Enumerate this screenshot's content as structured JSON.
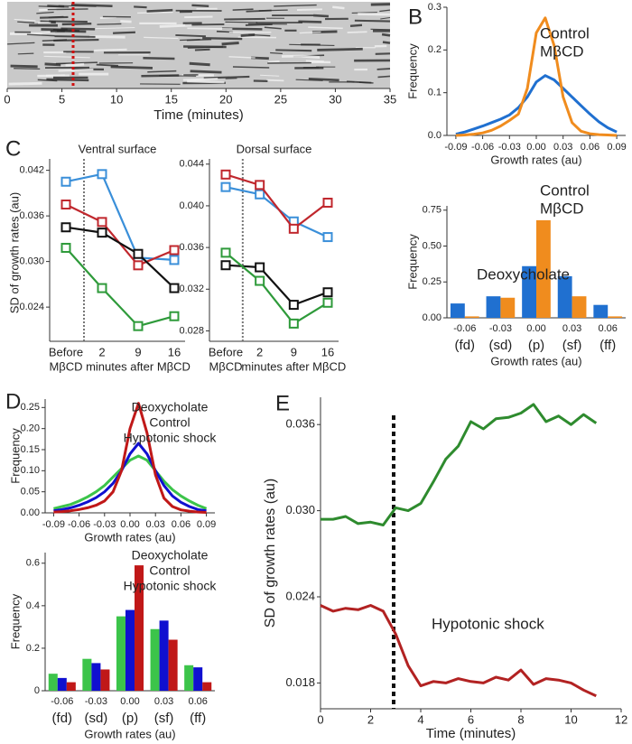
{
  "chart_data": [
    {
      "type": "kymograph",
      "panel": "A",
      "xlim": [
        0,
        35
      ],
      "xticks": [
        0,
        5,
        10,
        15,
        20,
        25,
        30,
        35
      ],
      "xlabel": "Time (minutes)"
    },
    {
      "type": "line",
      "panel": "B",
      "xlabel": "Growth rates (au)",
      "ylabel": "Frequency",
      "x": [
        -0.09,
        -0.08,
        -0.07,
        -0.06,
        -0.05,
        -0.04,
        -0.03,
        -0.02,
        -0.01,
        0,
        0.01,
        0.02,
        0.03,
        0.04,
        0.05,
        0.06,
        0.07,
        0.08,
        0.09
      ],
      "xlim": [
        -0.1,
        0.1
      ],
      "xticks": [
        -0.09,
        -0.06,
        -0.03,
        {
          "value": 0,
          "label": "0.00"
        },
        0.03,
        0.06,
        0.09
      ],
      "ylim": [
        0,
        0.3
      ],
      "yticks": [
        {
          "value": 0,
          "label": "0.0"
        },
        0.1,
        0.2,
        0.3
      ],
      "legend": "upper right",
      "series": [
        {
          "name": "Control",
          "color": "#2070d0",
          "values": [
            0.003,
            0.008,
            0.015,
            0.022,
            0.03,
            0.038,
            0.048,
            0.065,
            0.09,
            0.125,
            0.14,
            0.13,
            0.11,
            0.09,
            0.07,
            0.05,
            0.032,
            0.018,
            0.008
          ]
        },
        {
          "name": "MβCD",
          "color": "#f08c1e",
          "values": [
            0,
            0.001,
            0.003,
            0.006,
            0.012,
            0.022,
            0.035,
            0.05,
            0.11,
            0.24,
            0.275,
            0.21,
            0.09,
            0.03,
            0.01,
            0.004,
            0.002,
            0.001,
            0
          ]
        }
      ]
    },
    {
      "type": "bar",
      "xlabel": "Growth rates (au)",
      "ylabel": "Frequency",
      "categories": [
        "-0.06",
        "-0.03",
        "0.00",
        "0.03",
        "0.06"
      ],
      "category_codes": [
        "(fd)",
        "(sd)",
        "(p)",
        "(sf)",
        "(ff)"
      ],
      "ylim": [
        0,
        0.78
      ],
      "yticks": [
        {
          "value": 0,
          "label": "0.00"
        },
        0.25,
        {
          "value": 0.5,
          "label": "0.50"
        },
        0.75
      ],
      "legend": "upper right",
      "series": [
        {
          "name": "Control",
          "color": "#2070d0",
          "values": [
            0.1,
            0.15,
            0.36,
            0.29,
            0.09
          ]
        },
        {
          "name": "MβCD",
          "color": "#f08c1e",
          "values": [
            0.01,
            0.14,
            0.68,
            0.15,
            0.01
          ]
        }
      ]
    },
    {
      "type": "line",
      "panel": "C",
      "title": "Ventral surface",
      "ylabel": "SD of growth rates (au)",
      "markers": "square",
      "categories": [
        "Before",
        "2",
        "9",
        "16"
      ],
      "x_captions": [
        {
          "text": "MβCD",
          "color": "#2e5fa8"
        },
        {
          "text": "minutes after MβCD",
          "color": "#c0272d"
        }
      ],
      "ylim": [
        0.0195,
        0.0435
      ],
      "yticks": [
        0.024,
        {
          "value": 0.03,
          "label": "0.030"
        },
        0.036,
        0.042
      ],
      "series": [
        {
          "color": "#3a8fd9",
          "values": [
            0.0405,
            0.0415,
            0.0305,
            0.0302
          ]
        },
        {
          "color": "#c0272d",
          "values": [
            0.0375,
            0.0352,
            0.0295,
            0.0315
          ]
        },
        {
          "color": "#111111",
          "values": [
            0.0345,
            0.0338,
            0.031,
            0.0265
          ]
        },
        {
          "color": "#2e9a3a",
          "values": [
            0.0318,
            0.0265,
            0.0215,
            0.0228
          ]
        }
      ]
    },
    {
      "type": "line",
      "title": "Dorsal surface",
      "markers": "square",
      "categories": [
        "Before",
        "2",
        "9",
        "16"
      ],
      "x_captions": [
        {
          "text": "MβCD",
          "color": "#2e5fa8"
        },
        {
          "text": "minutes after MβCD",
          "color": "#c0272d"
        }
      ],
      "ylim": [
        0.027,
        0.0445
      ],
      "yticks": [
        0.028,
        0.032,
        0.036,
        {
          "value": 0.04,
          "label": "0.040"
        },
        0.044
      ],
      "series": [
        {
          "color": "#3a8fd9",
          "values": [
            0.0418,
            0.0411,
            0.0385,
            0.037
          ]
        },
        {
          "color": "#c0272d",
          "values": [
            0.043,
            0.042,
            0.0378,
            0.0403
          ]
        },
        {
          "color": "#111111",
          "values": [
            0.0343,
            0.0341,
            0.0305,
            0.0317
          ]
        },
        {
          "color": "#2e9a3a",
          "values": [
            0.0355,
            0.0328,
            0.0287,
            0.0307
          ]
        }
      ]
    },
    {
      "type": "line",
      "panel": "D",
      "xlabel": "Growth rates (au)",
      "ylabel": "Frequency",
      "x": [
        -0.09,
        -0.08,
        -0.07,
        -0.06,
        -0.05,
        -0.04,
        -0.03,
        -0.02,
        -0.01,
        0,
        0.01,
        0.02,
        0.03,
        0.04,
        0.05,
        0.06,
        0.07,
        0.08,
        0.09
      ],
      "xlim": [
        -0.1,
        0.1
      ],
      "xticks": [
        -0.09,
        -0.06,
        -0.03,
        {
          "value": 0,
          "label": "0.00"
        },
        0.03,
        0.06,
        0.09
      ],
      "ylim": [
        0,
        0.27
      ],
      "yticks": [
        {
          "value": 0,
          "label": "0.00"
        },
        0.05,
        {
          "value": 0.1,
          "label": "0.10"
        },
        0.15,
        {
          "value": 0.2,
          "label": "0.20"
        },
        0.25
      ],
      "legend": "upper right",
      "series": [
        {
          "name": "Deoxycholate",
          "color": "#3cc44a",
          "values": [
            0.01,
            0.015,
            0.02,
            0.028,
            0.038,
            0.05,
            0.065,
            0.085,
            0.105,
            0.125,
            0.135,
            0.125,
            0.1,
            0.075,
            0.055,
            0.04,
            0.028,
            0.018,
            0.01
          ]
        },
        {
          "name": "Control",
          "color": "#1010d0",
          "values": [
            0.005,
            0.008,
            0.012,
            0.018,
            0.026,
            0.036,
            0.05,
            0.07,
            0.1,
            0.14,
            0.165,
            0.14,
            0.1,
            0.065,
            0.04,
            0.025,
            0.015,
            0.008,
            0.005
          ]
        },
        {
          "name": "Hypotonic shock",
          "color": "#c01818",
          "values": [
            0.002,
            0.003,
            0.005,
            0.008,
            0.012,
            0.018,
            0.028,
            0.05,
            0.1,
            0.2,
            0.26,
            0.19,
            0.09,
            0.035,
            0.015,
            0.007,
            0.004,
            0.002,
            0.001
          ]
        }
      ]
    },
    {
      "type": "bar",
      "xlabel": "Growth rates (au)",
      "ylabel": "Frequency",
      "categories": [
        "-0.06",
        "-0.03",
        "0.00",
        "0.03",
        "0.06"
      ],
      "category_codes": [
        "(fd)",
        "(sd)",
        "(p)",
        "(sf)",
        "(ff)"
      ],
      "ylim": [
        0,
        0.65
      ],
      "yticks": [
        0,
        0.2,
        0.4,
        0.6
      ],
      "legend": "upper right",
      "series": [
        {
          "name": "Deoxycholate",
          "color": "#3cc44a",
          "values": [
            0.08,
            0.15,
            0.35,
            0.29,
            0.12
          ]
        },
        {
          "name": "Control",
          "color": "#1010d0",
          "values": [
            0.06,
            0.13,
            0.38,
            0.33,
            0.11
          ]
        },
        {
          "name": "Hypotonic shock",
          "color": "#c01818",
          "values": [
            0.04,
            0.1,
            0.59,
            0.24,
            0.04
          ]
        }
      ]
    },
    {
      "type": "line",
      "panel": "E",
      "xlabel": "Time (minutes)",
      "ylabel": "SD of growth rates (au)",
      "legend": "inline",
      "x": [
        0,
        0.5,
        1,
        1.5,
        2,
        2.5,
        3,
        3.5,
        4,
        4.5,
        5,
        5.5,
        6,
        6.5,
        7,
        7.5,
        8,
        8.5,
        9,
        9.5,
        10,
        10.5,
        11
      ],
      "xlim": [
        0,
        12
      ],
      "xticks": [
        0,
        2,
        4,
        6,
        8,
        10,
        12
      ],
      "ylim": [
        0.0162,
        0.0379
      ],
      "yticks": [
        0.018,
        0.024,
        {
          "value": 0.03,
          "label": "0.030"
        },
        0.036
      ],
      "series": [
        {
          "name": "Deoxycholate",
          "color": "#2e8b2e",
          "values": [
            0.0294,
            0.0294,
            0.0296,
            0.0291,
            0.0292,
            0.029,
            0.0302,
            0.03,
            0.0305,
            0.032,
            0.0336,
            0.0345,
            0.0362,
            0.0357,
            0.0364,
            0.0365,
            0.0368,
            0.0374,
            0.0362,
            0.0366,
            0.036,
            0.0367,
            0.0361
          ]
        },
        {
          "name": "Hypotonic shock",
          "color": "#b22222",
          "values": [
            0.0234,
            0.023,
            0.0232,
            0.0231,
            0.0234,
            0.023,
            0.0214,
            0.0192,
            0.0178,
            0.0181,
            0.018,
            0.0183,
            0.0181,
            0.018,
            0.0184,
            0.0182,
            0.0189,
            0.0179,
            0.0183,
            0.0182,
            0.018,
            0.0175,
            0.0171
          ]
        }
      ]
    }
  ]
}
